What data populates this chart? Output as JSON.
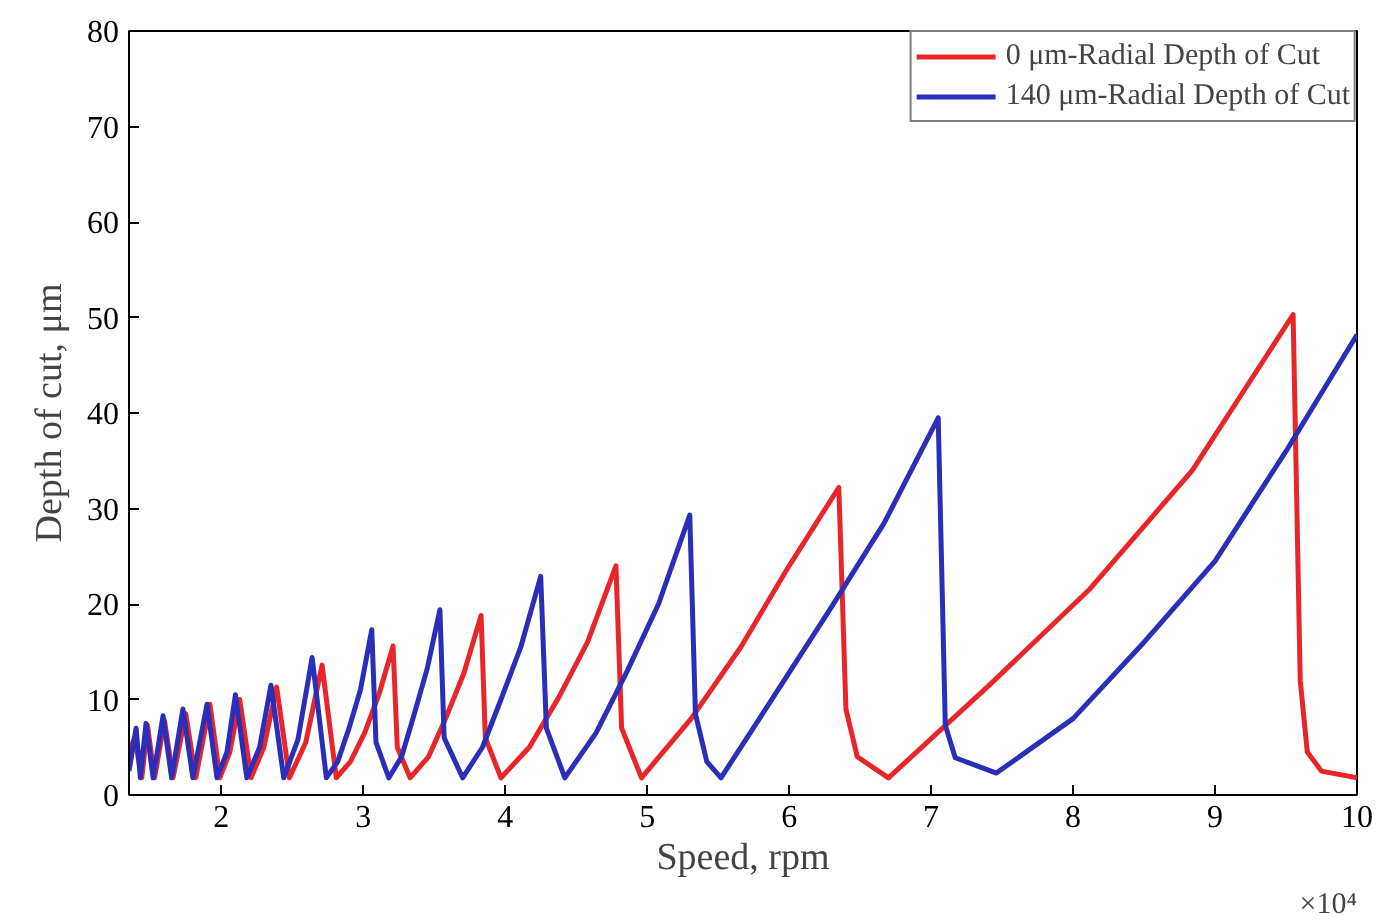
{
  "chart_data": {
    "type": "line",
    "xlabel": "Speed, rpm",
    "ylabel": "Depth of cut, μm",
    "xlim": [
      1.35,
      10
    ],
    "ylim": [
      0,
      80
    ],
    "xticks": [
      2,
      3,
      4,
      5,
      6,
      7,
      8,
      9,
      10
    ],
    "yticks": [
      0,
      10,
      20,
      30,
      40,
      50,
      60,
      70,
      80
    ],
    "grid": false,
    "legend": "top right",
    "annotations": [
      "×10⁴"
    ],
    "series": [
      {
        "name": "0 μm-Radial Depth of Cut",
        "color": "#e8262a",
        "x": [
          1.35,
          1.39,
          1.44,
          1.48,
          1.53,
          1.6,
          1.66,
          1.75,
          1.82,
          1.92,
          1.99,
          2.06,
          2.13,
          2.21,
          2.3,
          2.39,
          2.48,
          2.595,
          2.71,
          2.81,
          2.91,
          3.01,
          3.11,
          3.21,
          3.24,
          3.33,
          3.46,
          3.58,
          3.71,
          3.83,
          3.86,
          3.97,
          4.17,
          4.38,
          4.58,
          4.78,
          4.82,
          4.96,
          5.31,
          5.66,
          6.0,
          6.35,
          6.4,
          6.48,
          6.7,
          7.41,
          8.12,
          8.84,
          9.55,
          9.6,
          9.65,
          9.75,
          10.0
        ],
        "values": [
          4.5,
          6.0,
          1.8,
          7.3,
          1.8,
          7.8,
          1.8,
          8.5,
          1.8,
          9.5,
          1.8,
          4.5,
          10.0,
          1.8,
          5,
          11.3,
          1.8,
          5.5,
          13.6,
          1.8,
          3.5,
          6.5,
          10.5,
          15.6,
          5,
          1.8,
          4,
          8,
          12.8,
          18.8,
          6,
          1.8,
          5,
          10.3,
          16,
          24.0,
          7,
          1.8,
          8,
          15.5,
          24,
          32.2,
          9,
          4,
          1.8,
          11.5,
          21.6,
          34,
          50.3,
          12,
          4.5,
          2.5,
          1.8
        ]
      },
      {
        "name": "140 μm-Radial Depth of Cut",
        "color": "#2a2eb8",
        "x": [
          1.35,
          1.4,
          1.43,
          1.47,
          1.52,
          1.59,
          1.65,
          1.73,
          1.8,
          1.9,
          1.97,
          2.04,
          2.1,
          2.18,
          2.27,
          2.35,
          2.44,
          2.54,
          2.64,
          2.74,
          2.82,
          2.9,
          2.98,
          3.06,
          3.09,
          3.18,
          3.27,
          3.36,
          3.45,
          3.54,
          3.57,
          3.7,
          3.84,
          3.97,
          4.11,
          4.25,
          4.29,
          4.42,
          4.64,
          4.86,
          5.08,
          5.3,
          5.34,
          5.42,
          5.52,
          5.9,
          6.29,
          6.67,
          7.05,
          7.1,
          7.17,
          7.46,
          8.0,
          8.5,
          9.0,
          9.5,
          10.0
        ],
        "values": [
          2.5,
          7.0,
          1.8,
          7.5,
          1.8,
          8.3,
          1.8,
          9.0,
          1.8,
          9.5,
          1.8,
          4.5,
          10.5,
          1.8,
          5,
          11.5,
          1.8,
          5.8,
          14.4,
          1.8,
          3.5,
          7,
          11,
          17.3,
          5.5,
          1.8,
          4,
          8.5,
          13.2,
          19.4,
          6,
          1.8,
          5,
          10,
          15.5,
          22.9,
          7,
          1.8,
          6.5,
          13,
          20,
          29.3,
          8.5,
          3.5,
          1.8,
          10.5,
          19.5,
          28.5,
          39.5,
          7.3,
          3.9,
          2.3,
          8,
          16,
          24.5,
          36,
          48.2
        ]
      }
    ]
  }
}
